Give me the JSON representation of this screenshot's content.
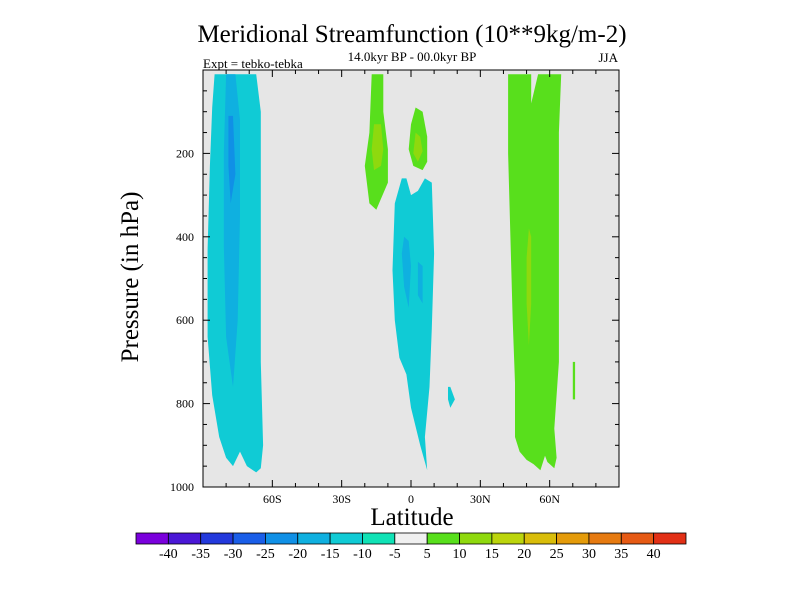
{
  "chart_data": {
    "type": "heatmap",
    "title": "Meridional Streamfunction (10**9kg/m-2)",
    "subtitle": "14.0kyr BP - 00.0kyr BP",
    "left_annotation": "Expt = tebko-tebka",
    "right_annotation": "JJA",
    "xlabel": "Latitude",
    "ylabel": "Pressure (in hPa)",
    "xlim": [
      -90,
      90
    ],
    "ylim": [
      1000,
      0
    ],
    "x_ticks": [
      {
        "value": -60,
        "label": "60S"
      },
      {
        "value": -30,
        "label": "30S"
      },
      {
        "value": 0,
        "label": "0"
      },
      {
        "value": 30,
        "label": "30N"
      },
      {
        "value": 60,
        "label": "60N"
      }
    ],
    "y_ticks": [
      {
        "value": 200,
        "label": "200"
      },
      {
        "value": 400,
        "label": "400"
      },
      {
        "value": 600,
        "label": "600"
      },
      {
        "value": 800,
        "label": "800"
      },
      {
        "value": 1000,
        "label": "1000"
      }
    ],
    "background_color": "#e6e6e6",
    "colorbar": {
      "labels": [
        "-40",
        "-35",
        "-30",
        "-25",
        "-20",
        "-15",
        "-10",
        "-5",
        "5",
        "10",
        "15",
        "20",
        "25",
        "30",
        "35",
        "40"
      ],
      "colors": [
        "#7a00dc",
        "#4a17d6",
        "#2339dc",
        "#1a5ee8",
        "#1090e6",
        "#0fb0e0",
        "#10cbd5",
        "#10e2b6",
        "#f0f0f0",
        "#58df1c",
        "#8fd90e",
        "#bcd50c",
        "#d9bd0a",
        "#e49b0a",
        "#e67a10",
        "#e65a14",
        "#e23016"
      ]
    },
    "regions": [
      {
        "name": "southern-hemisphere-negative-cell",
        "level": -10,
        "color": "#10cbd5",
        "points": [
          [
            -85,
            10
          ],
          [
            -77,
            10
          ],
          [
            -70,
            10
          ],
          [
            -67,
            10
          ],
          [
            -65,
            100
          ],
          [
            -65,
            400
          ],
          [
            -65,
            700
          ],
          [
            -64,
            900
          ],
          [
            -65,
            955
          ],
          [
            -67,
            965
          ],
          [
            -71,
            950
          ],
          [
            -74,
            915
          ],
          [
            -77,
            950
          ],
          [
            -80,
            930
          ],
          [
            -83,
            880
          ],
          [
            -86,
            780
          ],
          [
            -88,
            640
          ],
          [
            -88,
            430
          ],
          [
            -87,
            230
          ],
          [
            -86,
            90
          ]
        ]
      },
      {
        "name": "southern-hemisphere-core",
        "level": -15,
        "color": "#0fb0e0",
        "points": [
          [
            -80,
            10
          ],
          [
            -76,
            10
          ],
          [
            -74,
            120
          ],
          [
            -74,
            350
          ],
          [
            -75,
            600
          ],
          [
            -77,
            760
          ],
          [
            -80,
            640
          ],
          [
            -81,
            420
          ],
          [
            -81,
            200
          ]
        ]
      },
      {
        "name": "southern-hemisphere-inner",
        "level": -20,
        "color": "#1090e6",
        "points": [
          [
            -79,
            110
          ],
          [
            -77,
            110
          ],
          [
            -76,
            250
          ],
          [
            -78,
            320
          ],
          [
            -79,
            230
          ]
        ]
      },
      {
        "name": "subtropical-positive-upper",
        "level": 5,
        "color": "#58df1c",
        "points": [
          [
            -17,
            10
          ],
          [
            -12,
            10
          ],
          [
            -12,
            100
          ],
          [
            -10,
            190
          ],
          [
            -10,
            270
          ],
          [
            -15,
            335
          ],
          [
            -18,
            320
          ],
          [
            -20,
            230
          ],
          [
            -18,
            150
          ]
        ]
      },
      {
        "name": "subtropical-positive-core",
        "level": 10,
        "color": "#8fd90e",
        "points": [
          [
            -16,
            130
          ],
          [
            -13,
            130
          ],
          [
            -12,
            190
          ],
          [
            -13,
            230
          ],
          [
            -16,
            240
          ],
          [
            -17,
            190
          ]
        ]
      },
      {
        "name": "equatorial-positive-upper",
        "level": 5,
        "color": "#58df1c",
        "points": [
          [
            2,
            90
          ],
          [
            5,
            100
          ],
          [
            7,
            160
          ],
          [
            7,
            220
          ],
          [
            5,
            240
          ],
          [
            1,
            230
          ],
          [
            -1,
            190
          ],
          [
            0,
            130
          ]
        ]
      },
      {
        "name": "equatorial-positive-core",
        "level": 10,
        "color": "#8fd90e",
        "points": [
          [
            2,
            150
          ],
          [
            4,
            160
          ],
          [
            5,
            195
          ],
          [
            3,
            220
          ],
          [
            1,
            200
          ]
        ]
      },
      {
        "name": "equatorial-negative-cell",
        "level": -10,
        "color": "#10cbd5",
        "points": [
          [
            -4,
            260
          ],
          [
            -2,
            260
          ],
          [
            0,
            300
          ],
          [
            3,
            290
          ],
          [
            6,
            260
          ],
          [
            9,
            270
          ],
          [
            10,
            440
          ],
          [
            9,
            620
          ],
          [
            8,
            760
          ],
          [
            6,
            880
          ],
          [
            7,
            960
          ],
          [
            4,
            900
          ],
          [
            0,
            810
          ],
          [
            -2,
            730
          ],
          [
            -5,
            690
          ],
          [
            -7,
            600
          ],
          [
            -8,
            480
          ],
          [
            -7,
            320
          ]
        ]
      },
      {
        "name": "equatorial-negative-core",
        "level": -15,
        "color": "#0fb0e0",
        "points": [
          [
            -3,
            400
          ],
          [
            -1,
            410
          ],
          [
            0,
            470
          ],
          [
            -1,
            570
          ],
          [
            -3,
            520
          ],
          [
            -4,
            440
          ]
        ]
      },
      {
        "name": "equatorial-negative-core-east",
        "level": -15,
        "color": "#0fb0e0",
        "points": [
          [
            3,
            460
          ],
          [
            5,
            470
          ],
          [
            5,
            560
          ],
          [
            3,
            540
          ]
        ]
      },
      {
        "name": "tropical-small-negative",
        "level": -10,
        "color": "#10cbd5",
        "points": [
          [
            16,
            760
          ],
          [
            17,
            760
          ],
          [
            19,
            790
          ],
          [
            17,
            810
          ],
          [
            16,
            790
          ]
        ]
      },
      {
        "name": "northern-hemisphere-positive-cell",
        "level": 5,
        "color": "#58df1c",
        "points": [
          [
            42,
            10
          ],
          [
            52,
            10
          ],
          [
            52,
            80
          ],
          [
            55,
            10
          ],
          [
            65,
            10
          ],
          [
            64,
            150
          ],
          [
            64,
            400
          ],
          [
            64,
            700
          ],
          [
            62,
            860
          ],
          [
            63,
            930
          ],
          [
            62,
            955
          ],
          [
            59,
            940
          ],
          [
            58,
            925
          ],
          [
            56,
            960
          ],
          [
            53,
            945
          ],
          [
            50,
            935
          ],
          [
            47,
            915
          ],
          [
            45,
            880
          ],
          [
            45,
            750
          ],
          [
            44,
            600
          ],
          [
            43,
            400
          ],
          [
            42,
            200
          ]
        ]
      },
      {
        "name": "northern-hemisphere-core",
        "level": 10,
        "color": "#8fd90e",
        "points": [
          [
            51,
            380
          ],
          [
            52,
            400
          ],
          [
            52,
            560
          ],
          [
            51,
            660
          ],
          [
            50,
            560
          ],
          [
            50,
            450
          ]
        ]
      },
      {
        "name": "northern-high-latitude-sliver",
        "level": 5,
        "color": "#58df1c",
        "points": [
          [
            70,
            700
          ],
          [
            71,
            700
          ],
          [
            71,
            790
          ],
          [
            70,
            790
          ]
        ]
      }
    ]
  }
}
